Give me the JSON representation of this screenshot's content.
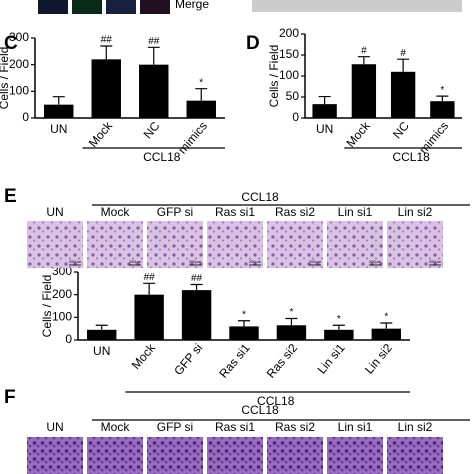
{
  "top": {
    "label": "Merge"
  },
  "chart_data": [
    {
      "type": "bar",
      "panel_label": "C",
      "ylabel": "Cells / Field",
      "color": "#000000",
      "categories": [
        "UN",
        "Mock",
        "NC",
        "mimics"
      ],
      "values": [
        50,
        220,
        200,
        65
      ],
      "errors": [
        30,
        50,
        65,
        45
      ],
      "markers": [
        null,
        "##",
        "##",
        "*"
      ],
      "group_label": "CCL18",
      "ylim": [
        0,
        300
      ],
      "yticks": [
        0,
        100,
        200,
        300
      ]
    },
    {
      "type": "bar",
      "panel_label": "D",
      "ylabel": "Cells / Field",
      "color": "#000000",
      "categories": [
        "UN",
        "Mock",
        "NC",
        "mimics"
      ],
      "values": [
        33,
        128,
        110,
        40
      ],
      "errors": [
        18,
        18,
        30,
        12
      ],
      "markers": [
        null,
        "#",
        "#",
        "*"
      ],
      "group_label": "CCL18",
      "ylim": [
        0,
        200
      ],
      "yticks": [
        0,
        50,
        100,
        150,
        200
      ]
    },
    {
      "type": "bar",
      "ylabel": "Cells / Field",
      "color": "#000000",
      "categories": [
        "UN",
        "Mock",
        "GFP si",
        "Ras si1",
        "Ras si2",
        "Lin si1",
        "Lin si2"
      ],
      "values": [
        45,
        200,
        220,
        60,
        65,
        45,
        50
      ],
      "errors": [
        20,
        50,
        25,
        25,
        30,
        20,
        25
      ],
      "markers": [
        null,
        "##",
        "##",
        "*",
        "*",
        "*",
        "*"
      ],
      "group_label": "CCL18",
      "ylim": [
        0,
        300
      ],
      "yticks": [
        0,
        100,
        200,
        300
      ]
    }
  ],
  "panel_E": {
    "letter": "E",
    "group_label": "CCL18",
    "scale_bar": "200µm",
    "labels": [
      "UN",
      "Mock",
      "GFP si",
      "Ras si1",
      "Ras si2",
      "Lin si1",
      "Lin si2"
    ]
  },
  "panel_F": {
    "letter": "F",
    "group_label": "CCL18",
    "labels": [
      "UN",
      "Mock",
      "GFP si",
      "Ras si1",
      "Ras si2",
      "Lin si1",
      "Lin si2"
    ]
  }
}
